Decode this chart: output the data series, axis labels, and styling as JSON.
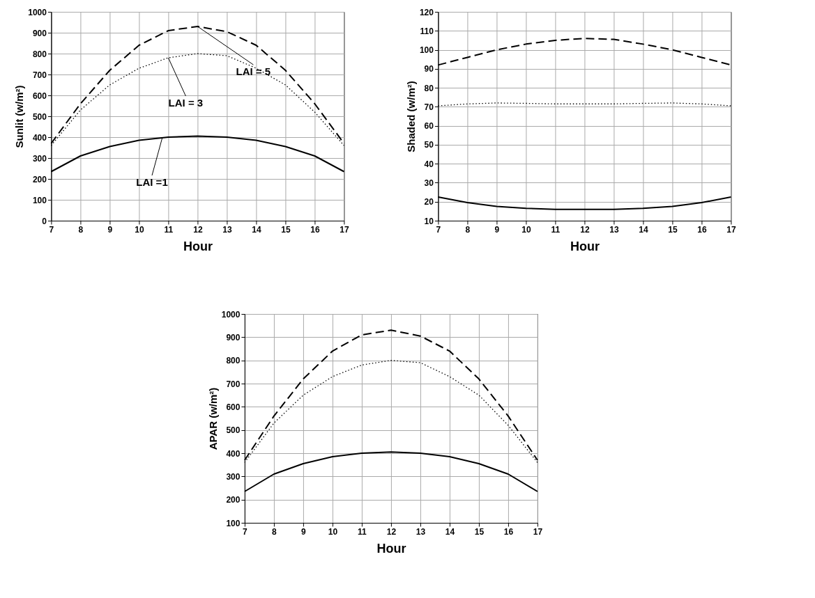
{
  "chart_data": [
    {
      "type": "line",
      "xlabel": "Hour",
      "ylabel": "Sunlit (w/m²)",
      "x": [
        7,
        8,
        9,
        10,
        11,
        12,
        13,
        14,
        15,
        16,
        17
      ],
      "xlim": [
        7,
        17
      ],
      "xticks": [
        7,
        8,
        9,
        10,
        11,
        12,
        13,
        14,
        15,
        16,
        17
      ],
      "ylim": [
        0,
        1000
      ],
      "yticks": [
        0,
        100,
        200,
        300,
        400,
        500,
        600,
        700,
        800,
        900,
        1000
      ],
      "grid": true,
      "series": [
        {
          "color": "#000000",
          "line_style": "dashed",
          "values": [
            370,
            560,
            720,
            840,
            910,
            930,
            905,
            840,
            720,
            560,
            370
          ]
        },
        {
          "color": "#000000",
          "line_style": "dotted",
          "values": [
            360,
            530,
            650,
            730,
            780,
            800,
            790,
            730,
            650,
            520,
            360
          ]
        },
        {
          "color": "#000000",
          "line_style": "solid",
          "values": [
            235,
            310,
            355,
            385,
            400,
            405,
            400,
            385,
            355,
            310,
            235
          ]
        }
      ],
      "annotations": [
        {
          "text": "LAI = 3",
          "x": 11,
          "y": 780
        },
        {
          "text": "LAI = 5",
          "x": 12,
          "y": 930
        },
        {
          "text": "LAI =1",
          "x": 10.8,
          "y": 400
        }
      ]
    },
    {
      "type": "line",
      "xlabel": "Hour",
      "ylabel": "Shaded (w/m²)",
      "x": [
        7,
        8,
        9,
        10,
        11,
        12,
        13,
        14,
        15,
        16,
        17
      ],
      "xlim": [
        7,
        17
      ],
      "xticks": [
        7,
        8,
        9,
        10,
        11,
        12,
        13,
        14,
        15,
        16,
        17
      ],
      "ylim": [
        10,
        120
      ],
      "yticks": [
        10,
        20,
        30,
        40,
        50,
        60,
        70,
        80,
        90,
        100,
        110,
        120
      ],
      "grid": true,
      "series": [
        {
          "color": "#000000",
          "line_style": "dashed",
          "values": [
            92,
            96,
            100,
            103,
            105,
            106,
            105.5,
            103,
            100,
            96,
            92
          ]
        },
        {
          "color": "#000000",
          "line_style": "dotted",
          "values": [
            70.5,
            71.5,
            72,
            71.8,
            71.5,
            71.5,
            71.5,
            71.8,
            72,
            71.5,
            70.5
          ]
        },
        {
          "color": "#000000",
          "line_style": "solid",
          "values": [
            22.5,
            19.5,
            17.5,
            16.5,
            16,
            16,
            16,
            16.5,
            17.5,
            19.5,
            22.5
          ]
        }
      ]
    },
    {
      "type": "line",
      "xlabel": "Hour",
      "ylabel": "APAR (w/m²)",
      "x": [
        7,
        8,
        9,
        10,
        11,
        12,
        13,
        14,
        15,
        16,
        17
      ],
      "xlim": [
        7,
        17
      ],
      "xticks": [
        7,
        8,
        9,
        10,
        11,
        12,
        13,
        14,
        15,
        16,
        17
      ],
      "ylim": [
        100,
        1000
      ],
      "yticks": [
        100,
        200,
        300,
        400,
        500,
        600,
        700,
        800,
        900,
        1000
      ],
      "grid": true,
      "series": [
        {
          "color": "#000000",
          "line_style": "dashed",
          "values": [
            370,
            560,
            720,
            840,
            910,
            930,
            905,
            840,
            720,
            560,
            370
          ]
        },
        {
          "color": "#000000",
          "line_style": "dotted",
          "values": [
            360,
            530,
            650,
            730,
            780,
            800,
            790,
            730,
            650,
            520,
            360
          ]
        },
        {
          "color": "#000000",
          "line_style": "solid",
          "values": [
            235,
            310,
            355,
            385,
            400,
            405,
            400,
            385,
            355,
            310,
            235
          ]
        }
      ]
    }
  ]
}
